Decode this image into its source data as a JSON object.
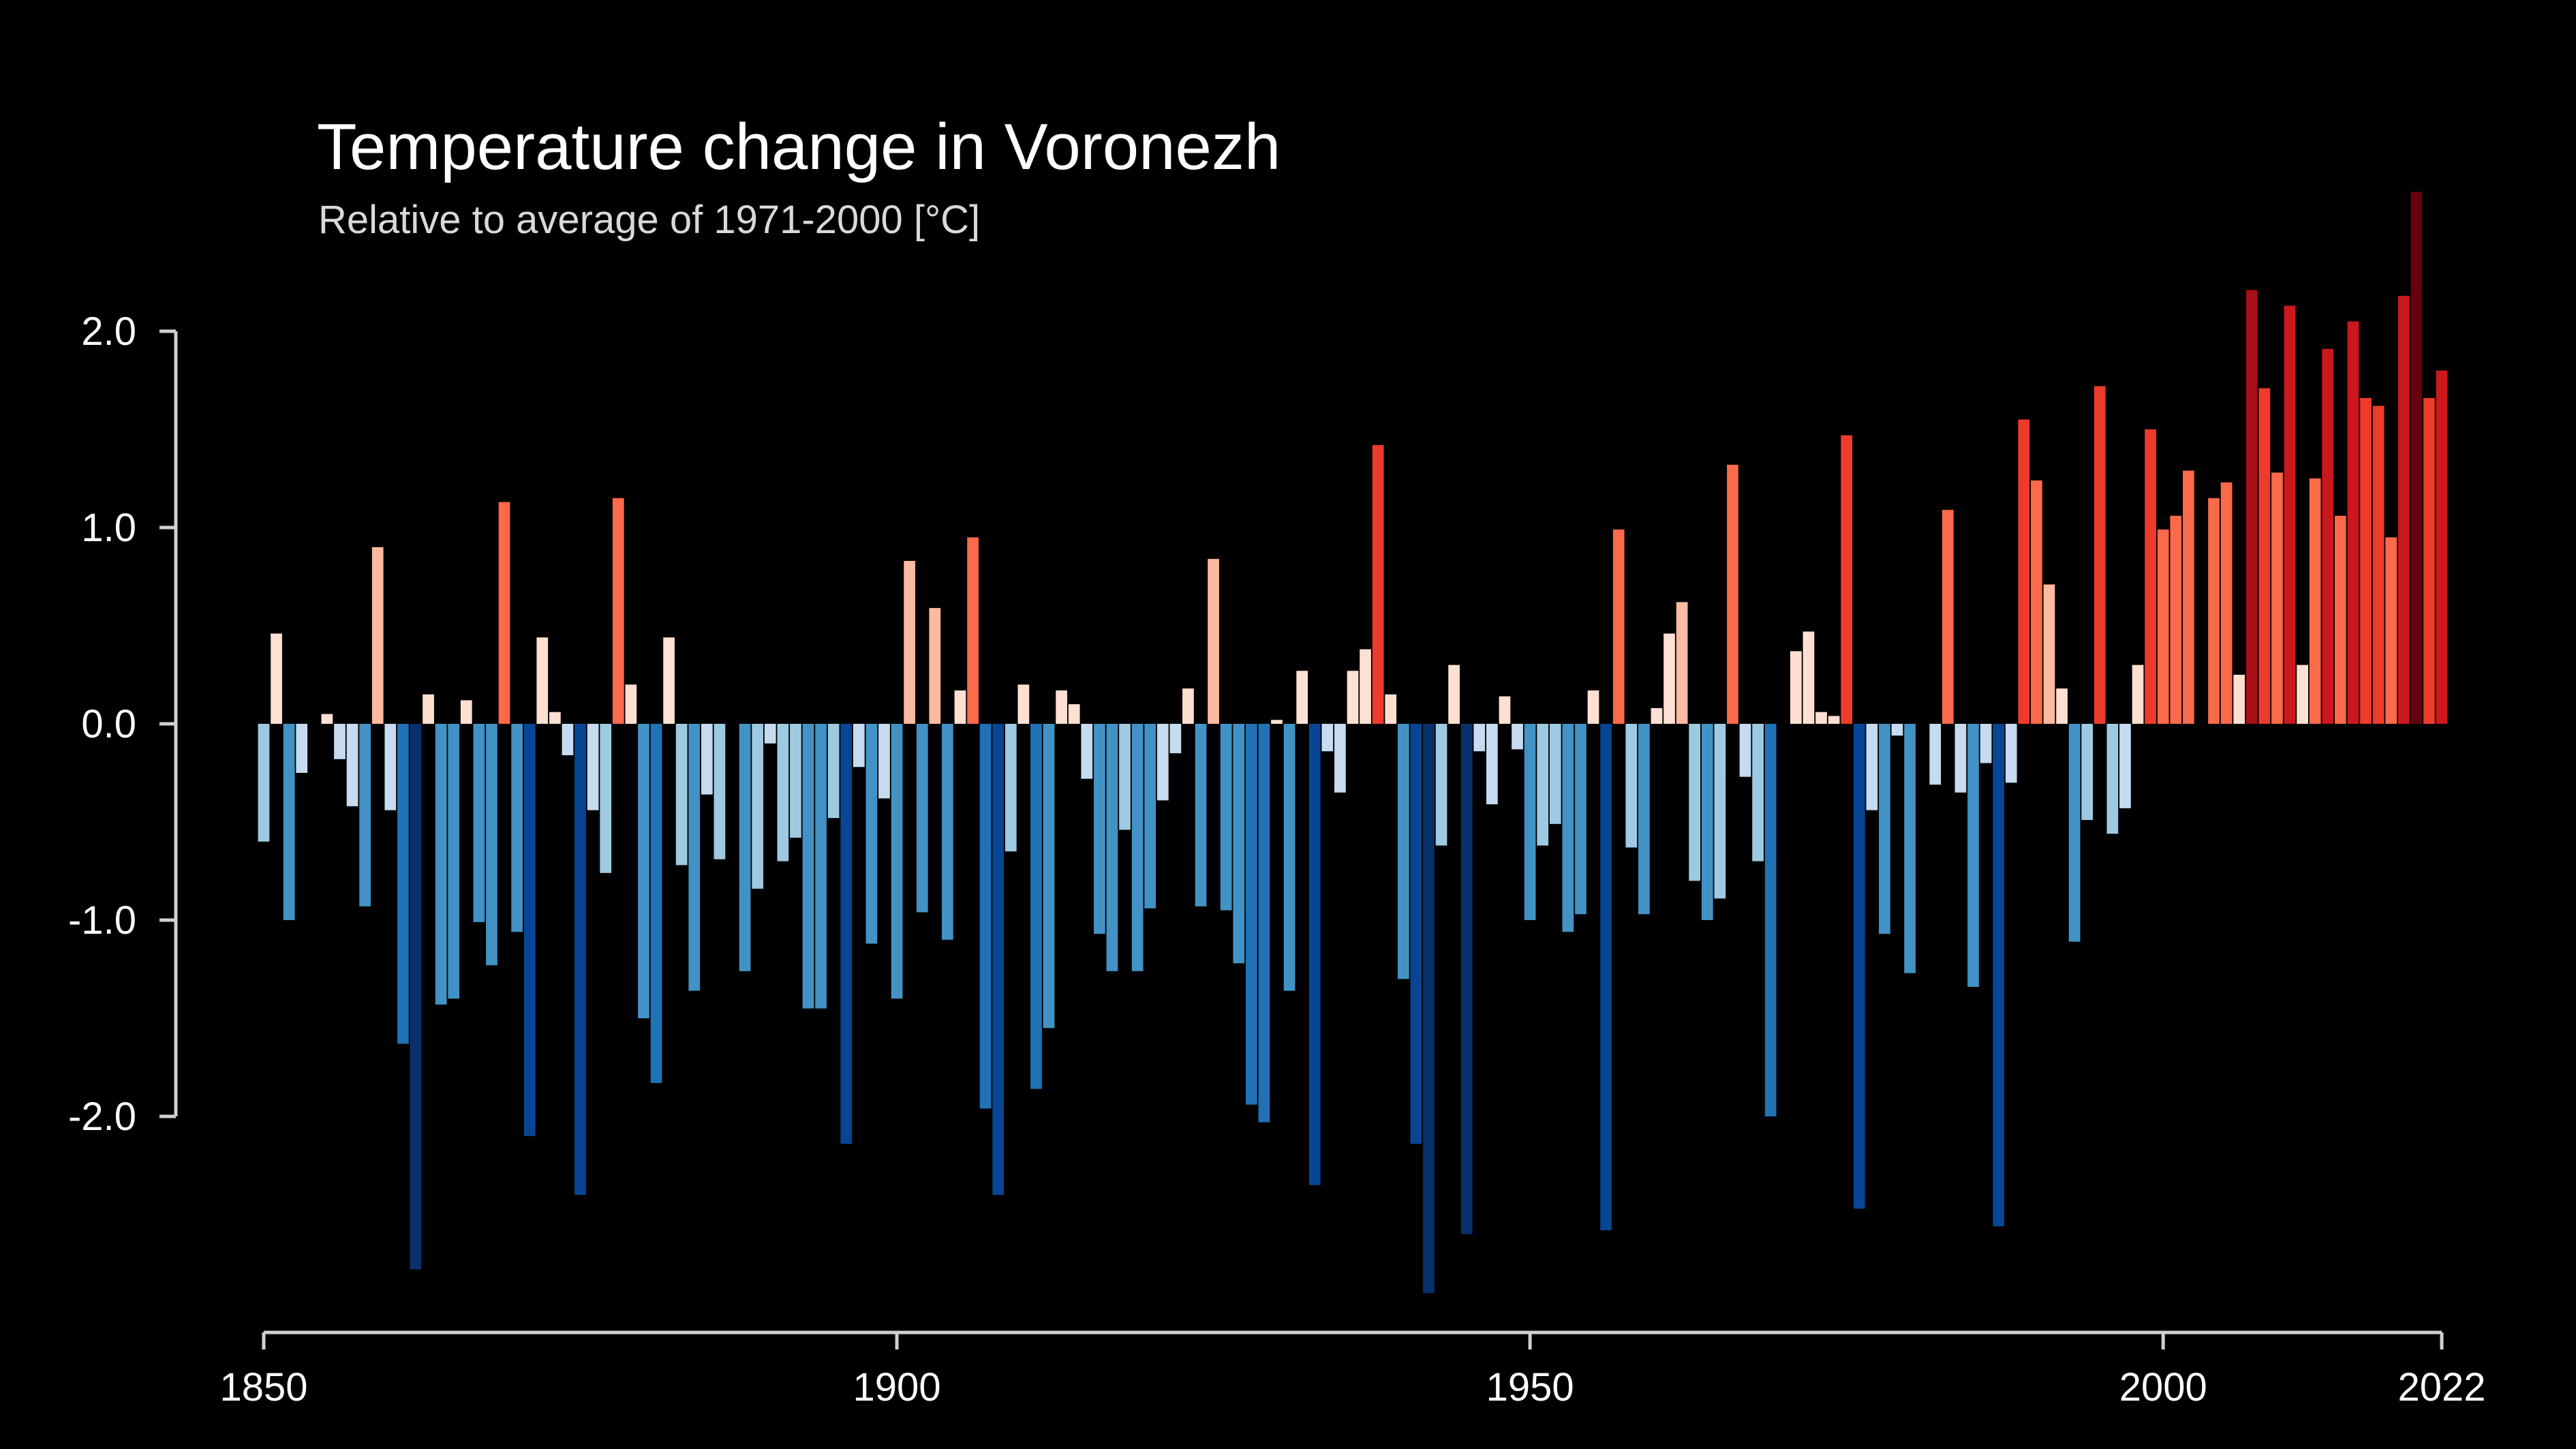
{
  "chart_data": {
    "type": "bar",
    "title": "Temperature change in Voronezh",
    "subtitle": "Relative to average of 1971-2000  [°C]",
    "xlabel": "",
    "ylabel": "",
    "x_start": 1850,
    "x": [
      1850,
      1851,
      1852,
      1853,
      1854,
      1855,
      1856,
      1857,
      1858,
      1859,
      1860,
      1861,
      1862,
      1863,
      1864,
      1865,
      1866,
      1867,
      1868,
      1869,
      1870,
      1871,
      1872,
      1873,
      1874,
      1875,
      1876,
      1877,
      1878,
      1879,
      1880,
      1881,
      1882,
      1883,
      1884,
      1885,
      1886,
      1887,
      1888,
      1889,
      1890,
      1891,
      1892,
      1893,
      1894,
      1895,
      1896,
      1897,
      1898,
      1899,
      1900,
      1901,
      1902,
      1903,
      1904,
      1905,
      1906,
      1907,
      1908,
      1909,
      1910,
      1911,
      1912,
      1913,
      1914,
      1915,
      1916,
      1917,
      1918,
      1919,
      1920,
      1921,
      1922,
      1923,
      1924,
      1925,
      1926,
      1927,
      1928,
      1929,
      1930,
      1931,
      1932,
      1933,
      1934,
      1935,
      1936,
      1937,
      1938,
      1939,
      1940,
      1941,
      1942,
      1943,
      1944,
      1945,
      1946,
      1947,
      1948,
      1949,
      1950,
      1951,
      1952,
      1953,
      1954,
      1955,
      1956,
      1957,
      1958,
      1959,
      1960,
      1961,
      1962,
      1963,
      1964,
      1965,
      1966,
      1967,
      1968,
      1969,
      1970,
      1971,
      1972,
      1973,
      1974,
      1975,
      1976,
      1977,
      1978,
      1979,
      1980,
      1981,
      1982,
      1983,
      1984,
      1985,
      1986,
      1987,
      1988,
      1989,
      1990,
      1991,
      1992,
      1993,
      1994,
      1995,
      1996,
      1997,
      1998,
      1999,
      2000,
      2001,
      2002,
      2003,
      2004,
      2005,
      2006,
      2007,
      2008,
      2009,
      2010,
      2011,
      2012,
      2013,
      2014,
      2015,
      2016,
      2017,
      2018,
      2019,
      2020,
      2021,
      2022
    ],
    "values": [
      -0.6,
      0.46,
      -1.0,
      -0.25,
      0.0,
      0.05,
      -0.18,
      -0.42,
      -0.93,
      0.9,
      -0.44,
      -1.63,
      -2.78,
      0.15,
      -1.43,
      -1.4,
      0.12,
      -1.01,
      -1.23,
      1.13,
      -1.06,
      -2.1,
      0.44,
      0.06,
      -0.16,
      -2.4,
      -0.44,
      -0.76,
      1.15,
      0.2,
      -1.5,
      -1.83,
      0.44,
      -0.72,
      -1.36,
      -0.36,
      -0.69,
      0.0,
      -1.26,
      -0.84,
      -0.1,
      -0.7,
      -0.58,
      -1.45,
      -1.45,
      -0.48,
      -2.14,
      -0.22,
      -1.12,
      -0.38,
      -1.4,
      0.83,
      -0.96,
      0.59,
      -1.1,
      0.17,
      0.95,
      -1.96,
      -2.4,
      -0.65,
      0.2,
      -1.86,
      -1.55,
      0.17,
      0.1,
      -0.28,
      -1.07,
      -1.26,
      -0.54,
      -1.26,
      -0.94,
      -0.39,
      -0.15,
      0.18,
      -0.93,
      0.84,
      -0.95,
      -1.22,
      -1.94,
      -2.03,
      0.02,
      -1.36,
      0.27,
      -2.35,
      -0.14,
      -0.35,
      0.27,
      0.38,
      1.42,
      0.15,
      -1.3,
      -2.14,
      -2.9,
      -0.62,
      0.3,
      -2.6,
      -0.14,
      -0.41,
      0.14,
      -0.13,
      -1.0,
      -0.62,
      -0.51,
      -1.06,
      -0.97,
      0.17,
      -2.58,
      0.99,
      -0.63,
      -0.97,
      0.08,
      0.46,
      0.62,
      -0.8,
      -1.0,
      -0.89,
      1.32,
      -0.27,
      -0.7,
      -2.0,
      0.0,
      0.37,
      0.47,
      0.06,
      0.04,
      1.47,
      -2.47,
      -0.44,
      -1.07,
      -0.06,
      -1.27,
      0.0,
      -0.31,
      1.09,
      -0.35,
      -1.34,
      -0.2,
      -2.56,
      -0.3,
      1.55,
      1.24,
      0.71,
      0.18,
      -1.11,
      -0.49,
      1.72,
      -0.56,
      -0.43,
      0.3,
      1.5,
      0.99,
      1.06,
      1.29,
      0.0,
      1.15,
      1.23,
      0.25,
      2.21,
      1.71,
      1.28,
      2.13,
      0.3,
      1.25,
      1.91,
      1.06,
      2.05,
      1.66,
      1.62,
      0.95,
      2.18,
      2.71,
      1.66,
      1.8
    ],
    "ylim": [
      -3.1,
      2.9
    ],
    "yticks": [
      "2.0",
      "1.0",
      "0.0",
      "-1.0",
      "-2.0"
    ],
    "xticks": [
      "1850",
      "1900",
      "1950",
      "2000",
      "2022"
    ],
    "grid": false,
    "legend": "none",
    "color_scale": "blue-to-red diverging",
    "colors": {
      "background": "#000000",
      "axis": "#d0d0d0",
      "text": "#ffffff",
      "subtitle": "#d9d9d9"
    }
  }
}
